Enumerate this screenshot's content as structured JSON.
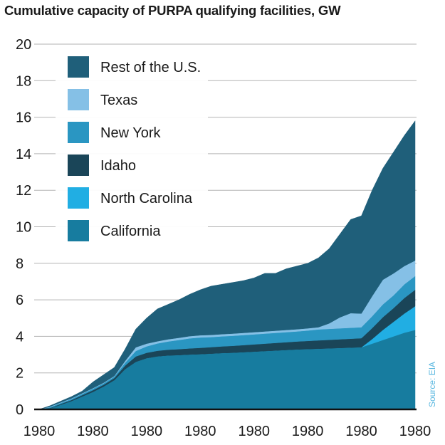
{
  "chart_data": {
    "type": "area",
    "stacked": true,
    "title": "Cumulative capacity of PURPA qualifying facilities, GW",
    "xlabel": "",
    "ylabel": "",
    "ylim": [
      0,
      20
    ],
    "yticks": [
      0,
      2,
      4,
      6,
      8,
      10,
      12,
      14,
      16,
      18,
      20
    ],
    "xtick_labels": [
      "1980",
      "1980",
      "1980",
      "1980",
      "1980",
      "1980",
      "1980",
      "1980"
    ],
    "grid": true,
    "legend_position": "top-left",
    "source": "Source: EIA",
    "series": [
      {
        "name": "California",
        "color": "#177c9f",
        "values": [
          0,
          0.05,
          0.25,
          0.45,
          0.7,
          0.95,
          1.25,
          1.6,
          2.2,
          2.6,
          2.8,
          2.9,
          2.95,
          2.97,
          3.0,
          3.02,
          3.05,
          3.08,
          3.1,
          3.13,
          3.16,
          3.19,
          3.22,
          3.25,
          3.28,
          3.3,
          3.32,
          3.34,
          3.36,
          3.38,
          3.4,
          3.6,
          3.8,
          4.0,
          4.2,
          4.35
        ]
      },
      {
        "name": "North Carolina",
        "color": "#21aee3",
        "values": [
          0,
          0,
          0,
          0,
          0,
          0,
          0,
          0,
          0,
          0,
          0,
          0,
          0,
          0,
          0,
          0,
          0,
          0,
          0,
          0,
          0,
          0,
          0,
          0,
          0,
          0,
          0,
          0,
          0,
          0,
          0,
          0.25,
          0.55,
          0.8,
          1.05,
          1.3
        ]
      },
      {
        "name": "Idaho",
        "color": "#1a4558",
        "values": [
          0,
          0.02,
          0.05,
          0.06,
          0.08,
          0.1,
          0.1,
          0.12,
          0.2,
          0.3,
          0.3,
          0.31,
          0.32,
          0.33,
          0.34,
          0.35,
          0.36,
          0.37,
          0.38,
          0.39,
          0.4,
          0.41,
          0.42,
          0.43,
          0.44,
          0.45,
          0.46,
          0.47,
          0.48,
          0.49,
          0.5,
          0.6,
          0.7,
          0.75,
          0.85,
          0.9
        ]
      },
      {
        "name": "New York",
        "color": "#2a96c2",
        "values": [
          0,
          0.05,
          0.05,
          0.06,
          0.07,
          0.08,
          0.08,
          0.08,
          0.15,
          0.3,
          0.35,
          0.4,
          0.45,
          0.5,
          0.55,
          0.57,
          0.55,
          0.55,
          0.55,
          0.55,
          0.55,
          0.55,
          0.55,
          0.55,
          0.55,
          0.57,
          0.6,
          0.6,
          0.6,
          0.6,
          0.6,
          0.65,
          0.7,
          0.7,
          0.75,
          0.75
        ]
      },
      {
        "name": "Texas",
        "color": "#85c0e6",
        "values": [
          0,
          0.03,
          0.03,
          0.03,
          0.03,
          0.03,
          0.03,
          0.03,
          0.1,
          0.2,
          0.15,
          0.12,
          0.12,
          0.12,
          0.12,
          0.12,
          0.12,
          0.12,
          0.12,
          0.12,
          0.12,
          0.12,
          0.12,
          0.12,
          0.12,
          0.12,
          0.12,
          0.3,
          0.6,
          0.8,
          0.75,
          1.1,
          1.35,
          1.2,
          1.0,
          0.85
        ]
      },
      {
        "name": "Rest of the U.S.",
        "color": "#1f5f7a",
        "values": [
          0,
          0.05,
          0.07,
          0.1,
          0.12,
          0.34,
          0.44,
          0.47,
          0.65,
          1.0,
          1.4,
          1.77,
          1.91,
          2.08,
          2.29,
          2.49,
          2.67,
          2.73,
          2.8,
          2.86,
          2.97,
          3.18,
          3.14,
          3.35,
          3.46,
          3.56,
          3.8,
          4.09,
          4.56,
          5.13,
          5.35,
          5.8,
          6.1,
          6.65,
          7.15,
          7.65
        ]
      }
    ],
    "legend_order": [
      "Rest of the U.S.",
      "Texas",
      "New York",
      "Idaho",
      "North Carolina",
      "California"
    ]
  }
}
